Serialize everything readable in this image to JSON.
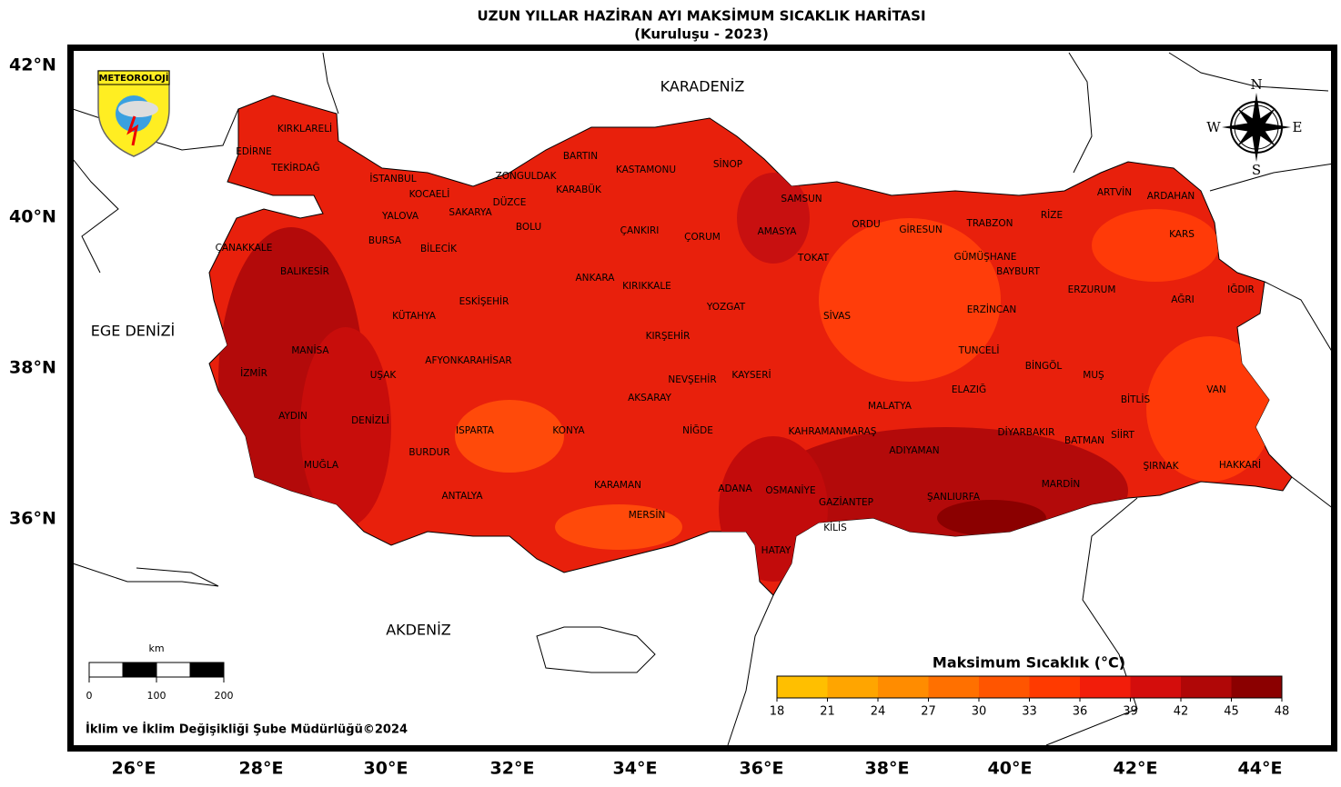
{
  "header": {
    "title": "UZUN YILLAR HAZİRAN AYI MAKSİMUM SICAKLIK HARİTASI",
    "subtitle": "(Kuruluşu - 2023)"
  },
  "lat_labels": [
    "42°N",
    "40°N",
    "38°N",
    "36°N"
  ],
  "lon_labels": [
    "26°E",
    "28°E",
    "30°E",
    "32°E",
    "34°E",
    "36°E",
    "38°E",
    "40°E",
    "42°E",
    "44°E"
  ],
  "seas": [
    "KARADENİZ",
    "EGE DENİZİ",
    "AKDENİZ"
  ],
  "logo": "METEOROLOJİ",
  "compass": [
    "N",
    "E",
    "S",
    "W"
  ],
  "provinces": [
    "KIRKLARELİ",
    "EDİRNE",
    "TEKİRDAĞ",
    "İSTANBUL",
    "ZONGULDAK",
    "BARTIN",
    "KASTAMONU",
    "SİNOP",
    "KOCAELİ",
    "DÜZCE",
    "KARABÜK",
    "SAMSUN",
    "ARTVİN",
    "ARDAHAN",
    "YALOVA",
    "SAKARYA",
    "BOLU",
    "ÇANKIRI",
    "ÇORUM",
    "AMASYA",
    "ORDU",
    "GİRESUN",
    "TRABZON",
    "RİZE",
    "KARS",
    "ÇANAKKALE",
    "BURSA",
    "BİLECİK",
    "TOKAT",
    "GÜMÜŞHANE",
    "BAYBURT",
    "BALIKESİR",
    "ANKARA",
    "KIRIKKALE",
    "ERZURUM",
    "AĞRI",
    "IĞDIR",
    "ESKİŞEHİR",
    "YOZGAT",
    "ERZİNCAN",
    "KÜTAHYA",
    "SİVAS",
    "MANİSA",
    "KIRŞEHİR",
    "TUNCELİ",
    "AFYONKARAHİSAR",
    "BİNGÖL",
    "İZMİR",
    "UŞAK",
    "KAYSERİ",
    "NEVŞEHİR",
    "MUŞ",
    "ELAZIĞ",
    "VAN",
    "AKSARAY",
    "BİTLİS",
    "MALATYA",
    "AYDIN",
    "DENİZLİ",
    "ISPARTA",
    "KONYA",
    "NİĞDE",
    "KAHRAMANMARAŞ",
    "DİYARBAKIR",
    "SİİRT",
    "BATMAN",
    "BURDUR",
    "ADIYAMAN",
    "MUĞLA",
    "ŞIRNAK",
    "HAKKARİ",
    "KARAMAN",
    "ADANA",
    "OSMANİYE",
    "MARDİN",
    "ANTALYA",
    "ŞANLIURFA",
    "GAZİANTEP",
    "MERSİN",
    "KİLİS",
    "HATAY"
  ],
  "colorbar": {
    "title": "Maksimum Sıcaklık (°C)",
    "range": [
      18,
      48
    ],
    "ticks": [
      18,
      21,
      24,
      27,
      30,
      33,
      36,
      39,
      42,
      45,
      48
    ],
    "colors": [
      "#ffbf00",
      "#ffa500",
      "#ff8c00",
      "#ff7000",
      "#ff5500",
      "#ff3a00",
      "#f21d0a",
      "#d40d0c",
      "#b00707",
      "#8b0000"
    ]
  },
  "scale_bar": {
    "unit": "km",
    "ticks": [
      0,
      100,
      200
    ]
  },
  "footer": "İklim ve İklim Değişikliği Şube Müdürlüğü©2024"
}
